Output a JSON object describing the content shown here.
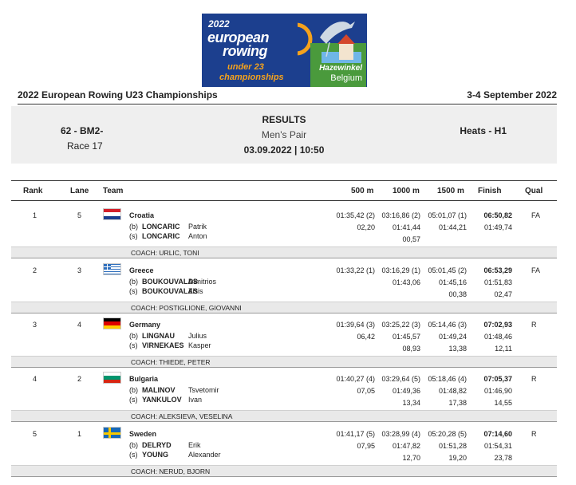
{
  "logo": {
    "year": "2022",
    "line1": "european",
    "line2": "rowing",
    "line3": "under 23",
    "line4": "championships",
    "place1": "Hazewinkel",
    "place2": "Belgium"
  },
  "header": {
    "title": "2022 European Rowing U23 Championships",
    "dates": "3-4 September 2022"
  },
  "event": {
    "code": "62 - BM2-",
    "race": "Race 17",
    "results_title": "RESULTS",
    "subtitle": "Men's Pair",
    "datetime": "03.09.2022 | 10:50",
    "heat": "Heats - H1"
  },
  "columns": {
    "rank": "Rank",
    "lane": "Lane",
    "team": "Team",
    "m500": "500 m",
    "m1000": "1000 m",
    "m1500": "1500 m",
    "finish": "Finish",
    "qual": "Qual"
  },
  "rows": [
    {
      "rank": "1",
      "lane": "5",
      "country": "Croatia",
      "flag": "croatia-flag",
      "bow_pos": "(b)",
      "bow_last": "LONCARIC",
      "bow_first": "Patrik",
      "str_pos": "(s)",
      "str_last": "LONCARIC",
      "str_first": "Anton",
      "t500": "01:35,42 (2)",
      "t500_diff": "02,20",
      "t1000": "03:16,86 (2)",
      "t1000_split": "01:41,44",
      "t1000_diff": "00,57",
      "t1500": "05:01,07 (1)",
      "t1500_split": "01:44,21",
      "t1500_diff": "",
      "finish": "06:50,82",
      "finish_split": "01:49,74",
      "finish_diff": "",
      "qual": "FA",
      "coach": "COACH: URLIC, TONI"
    },
    {
      "rank": "2",
      "lane": "3",
      "country": "Greece",
      "flag": "greece-flag",
      "bow_pos": "(b)",
      "bow_last": "BOUKOUVALAS",
      "bow_first": "Dimitrios",
      "str_pos": "(s)",
      "str_last": "BOUKOUVALAS",
      "str_first": "Zisis",
      "t500": "01:33,22 (1)",
      "t500_diff": "",
      "t1000": "03:16,29 (1)",
      "t1000_split": "01:43,06",
      "t1000_diff": "",
      "t1500": "05:01,45 (2)",
      "t1500_split": "01:45,16",
      "t1500_diff": "00,38",
      "finish": "06:53,29",
      "finish_split": "01:51,83",
      "finish_diff": "02,47",
      "qual": "FA",
      "coach": "COACH: POSTIGLIONE, GIOVANNI"
    },
    {
      "rank": "3",
      "lane": "4",
      "country": "Germany",
      "flag": "germany-flag",
      "bow_pos": "(b)",
      "bow_last": "LINGNAU",
      "bow_first": "Julius",
      "str_pos": "(s)",
      "str_last": "VIRNEKAES",
      "str_first": "Kasper",
      "t500": "01:39,64 (3)",
      "t500_diff": "06,42",
      "t1000": "03:25,22 (3)",
      "t1000_split": "01:45,57",
      "t1000_diff": "08,93",
      "t1500": "05:14,46 (3)",
      "t1500_split": "01:49,24",
      "t1500_diff": "13,38",
      "finish": "07:02,93",
      "finish_split": "01:48,46",
      "finish_diff": "12,11",
      "qual": "R",
      "coach": "COACH: THIEDE, PETER"
    },
    {
      "rank": "4",
      "lane": "2",
      "country": "Bulgaria",
      "flag": "bulgaria-flag",
      "bow_pos": "(b)",
      "bow_last": "MALINOV",
      "bow_first": "Tsvetomir",
      "str_pos": "(s)",
      "str_last": "YANKULOV",
      "str_first": "Ivan",
      "t500": "01:40,27 (4)",
      "t500_diff": "07,05",
      "t1000": "03:29,64 (5)",
      "t1000_split": "01:49,36",
      "t1000_diff": "13,34",
      "t1500": "05:18,46 (4)",
      "t1500_split": "01:48,82",
      "t1500_diff": "17,38",
      "finish": "07:05,37",
      "finish_split": "01:46,90",
      "finish_diff": "14,55",
      "qual": "R",
      "coach": "COACH: ALEKSIEVA, VESELINA"
    },
    {
      "rank": "5",
      "lane": "1",
      "country": "Sweden",
      "flag": "sweden-flag",
      "bow_pos": "(b)",
      "bow_last": "DELRYD",
      "bow_first": "Erik",
      "str_pos": "(s)",
      "str_last": "YOUNG",
      "str_first": "Alexander",
      "t500": "01:41,17 (5)",
      "t500_diff": "07,95",
      "t1000": "03:28,99 (4)",
      "t1000_split": "01:47,82",
      "t1000_diff": "12,70",
      "t1500": "05:20,28 (5)",
      "t1500_split": "01:51,28",
      "t1500_diff": "19,20",
      "finish": "07:14,60",
      "finish_split": "01:54,31",
      "finish_diff": "23,78",
      "qual": "R",
      "coach": "COACH: NERUD, BJORN"
    }
  ]
}
